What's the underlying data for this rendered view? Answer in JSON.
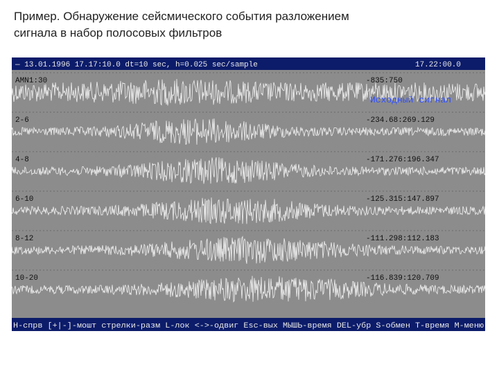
{
  "title_lines": [
    "Пример. Обнаружение сейсмического события разложением",
    "сигнала в набор полосовых фильтров"
  ],
  "toolbar": {
    "left": "— 13.01.1996 17.17:10.0 dt=10 sec, h=0.025 sec/sample",
    "right": "17.22:00.0"
  },
  "traces": [
    {
      "label": "AMN1:30",
      "range": "-835:750"
    },
    {
      "label": "2-6",
      "range": "-234.68:269.129"
    },
    {
      "label": "4-8",
      "range": "-171.276:196.347"
    },
    {
      "label": "6-10",
      "range": "-125.315:147.897"
    },
    {
      "label": "8-12",
      "range": "-111.298:112.183"
    },
    {
      "label": "10-20",
      "range": "-116.839:120.709"
    }
  ],
  "annotation": "Исходный сигнал",
  "status_bar": "H-спрв [+|-]-мошт стрелки-разм L-лок <->-одвиг Esc-вых МЫШЬ-время DEL-убр S-обмен T-время M-меню"
}
